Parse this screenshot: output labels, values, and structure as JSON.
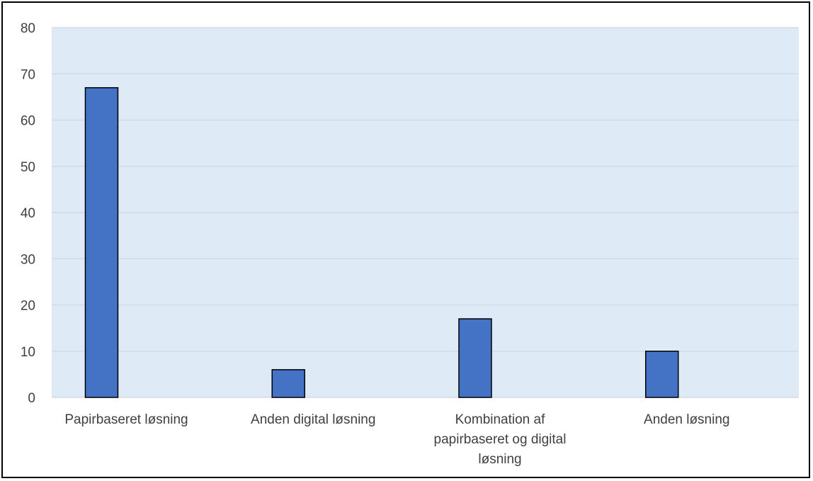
{
  "chart_data": {
    "type": "bar",
    "title": "",
    "xlabel": "",
    "ylabel": "",
    "ylim": [
      0,
      80
    ],
    "yticks": [
      0,
      10,
      20,
      30,
      40,
      50,
      60,
      70,
      80
    ],
    "grid": true,
    "legend": "none",
    "categories": [
      "Papirbaseret løsning",
      "Anden digital løsning",
      "Kombination af papirbaseret og digital løsning",
      "Anden løsning"
    ],
    "category_lines": [
      [
        "Papirbaseret løsning"
      ],
      [
        "Anden digital løsning"
      ],
      [
        "Kombination af",
        "papirbaseret og digital",
        "løsning"
      ],
      [
        "Anden løsning"
      ]
    ],
    "values": [
      67,
      6,
      17,
      10
    ],
    "colors": {
      "bar": "#4472C4",
      "bar_outline": "#000000",
      "plot_background": "#DEEAF6",
      "gridline": "#D0D7E0"
    }
  }
}
